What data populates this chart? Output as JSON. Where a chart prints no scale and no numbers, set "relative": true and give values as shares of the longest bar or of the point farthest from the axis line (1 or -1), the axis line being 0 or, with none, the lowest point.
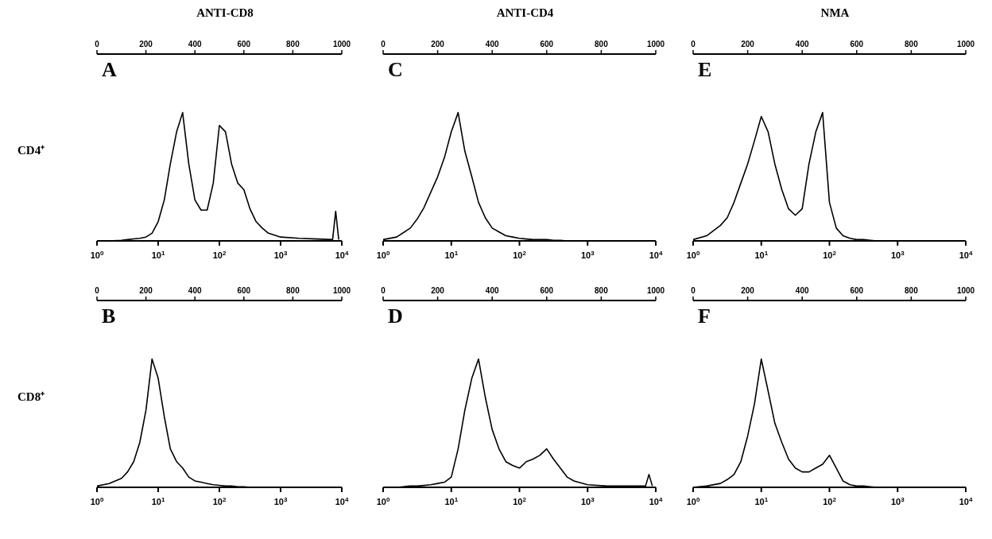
{
  "chart_data": [
    {
      "type": "line",
      "title": "ANTI-CD8",
      "ylabel": "CD4⁺",
      "annotations": [
        "A"
      ],
      "relative": true,
      "log": "x",
      "marker": "none",
      "xlim": [
        1,
        10000
      ],
      "xticks": [
        {
          "value": 1,
          "label": "10$^{0}$"
        },
        {
          "value": 10,
          "label": "10$^{1}$"
        },
        {
          "value": 100,
          "label": "10$^{2}$"
        },
        {
          "value": 1000,
          "label": "10$^{3}$"
        },
        {
          "value": 10000,
          "label": "10$^{4}$"
        }
      ],
      "x2lim": [
        0,
        1000
      ],
      "x2ticks": [
        0,
        200,
        400,
        600,
        800,
        1000
      ],
      "x": [
        1,
        1.58,
        2.51,
        3.16,
        3.98,
        5.01,
        6.31,
        7.94,
        10,
        12.6,
        15.8,
        20,
        25.1,
        31.6,
        39.8,
        50.1,
        63.1,
        79.4,
        100,
        126,
        158,
        200,
        251,
        316,
        398,
        501,
        631,
        1000,
        1995,
        3981,
        7079,
        7943,
        8913
      ],
      "series": [
        {
          "color": "#000000",
          "values": [
            0,
            0,
            0.005,
            0.01,
            0.015,
            0.02,
            0.03,
            0.06,
            0.15,
            0.32,
            0.6,
            0.85,
            1.0,
            0.6,
            0.32,
            0.24,
            0.24,
            0.45,
            0.9,
            0.85,
            0.6,
            0.45,
            0.4,
            0.25,
            0.15,
            0.1,
            0.06,
            0.03,
            0.02,
            0.015,
            0.01,
            0.23,
            0.01
          ]
        }
      ]
    },
    {
      "type": "line",
      "title": "ANTI-CD4",
      "annotations": [
        "C"
      ],
      "relative": true,
      "log": "x",
      "marker": "none",
      "xlim": [
        1,
        10000
      ],
      "xticks": [
        {
          "value": 1,
          "label": "10$^{0}$"
        },
        {
          "value": 10,
          "label": "10$^{1}$"
        },
        {
          "value": 100,
          "label": "10$^{2}$"
        },
        {
          "value": 1000,
          "label": "10$^{3}$"
        },
        {
          "value": 10000,
          "label": "10$^{4}$"
        }
      ],
      "x2lim": [
        0,
        1000
      ],
      "x2ticks": [
        0,
        200,
        400,
        600,
        800,
        1000
      ],
      "x": [
        1,
        1.58,
        2.51,
        3.16,
        3.98,
        5.01,
        6.31,
        7.94,
        10,
        12.6,
        15.8,
        20,
        25.1,
        31.6,
        39.8,
        50.1,
        63.1,
        79.4,
        100,
        126,
        158,
        200,
        251,
        316,
        398,
        501,
        631,
        1000,
        1995,
        3981,
        7079,
        7943,
        8913
      ],
      "series": [
        {
          "color": "#000000",
          "values": [
            0.01,
            0.03,
            0.1,
            0.17,
            0.26,
            0.38,
            0.5,
            0.65,
            0.85,
            1.0,
            0.7,
            0.5,
            0.3,
            0.18,
            0.1,
            0.07,
            0.04,
            0.03,
            0.02,
            0.015,
            0.01,
            0.01,
            0.01,
            0.005,
            0.005,
            0,
            0,
            0,
            0,
            0,
            0,
            0,
            0
          ]
        }
      ]
    },
    {
      "type": "line",
      "title": "NMA",
      "annotations": [
        "E"
      ],
      "relative": true,
      "log": "x",
      "marker": "none",
      "xlim": [
        1,
        10000
      ],
      "xticks": [
        {
          "value": 1,
          "label": "10$^{0}$"
        },
        {
          "value": 10,
          "label": "10$^{1}$"
        },
        {
          "value": 100,
          "label": "10$^{2}$"
        },
        {
          "value": 1000,
          "label": "10$^{3}$"
        },
        {
          "value": 10000,
          "label": "10$^{4}$"
        }
      ],
      "x2lim": [
        0,
        1000
      ],
      "x2ticks": [
        0,
        200,
        400,
        600,
        800,
        1000
      ],
      "x": [
        1,
        1.58,
        2.51,
        3.16,
        3.98,
        5.01,
        6.31,
        7.94,
        10,
        12.6,
        15.8,
        20,
        25.1,
        31.6,
        39.8,
        50.1,
        63.1,
        79.4,
        100,
        126,
        158,
        200,
        251,
        316,
        398,
        501,
        631,
        1000,
        1995,
        3981,
        7079,
        7943,
        8913
      ],
      "series": [
        {
          "color": "#000000",
          "values": [
            0.01,
            0.04,
            0.12,
            0.18,
            0.3,
            0.45,
            0.6,
            0.78,
            0.97,
            0.85,
            0.6,
            0.4,
            0.25,
            0.2,
            0.25,
            0.6,
            0.85,
            1.0,
            0.3,
            0.1,
            0.04,
            0.02,
            0.01,
            0.01,
            0.005,
            0,
            0,
            0,
            0,
            0,
            0,
            0,
            0
          ]
        }
      ]
    },
    {
      "type": "line",
      "ylabel": "CD8⁺",
      "annotations": [
        "B"
      ],
      "relative": true,
      "log": "x",
      "marker": "none",
      "xlim": [
        1,
        10000
      ],
      "xticks": [
        {
          "value": 1,
          "label": "10$^{0}$"
        },
        {
          "value": 10,
          "label": "10$^{1}$"
        },
        {
          "value": 100,
          "label": "10$^{2}$"
        },
        {
          "value": 1000,
          "label": "10$^{3}$"
        },
        {
          "value": 10000,
          "label": "10$^{4}$"
        }
      ],
      "x2lim": [
        0,
        1000
      ],
      "x2ticks": [
        0,
        200,
        400,
        600,
        800,
        1000
      ],
      "x": [
        1,
        1.58,
        2.51,
        3.16,
        3.98,
        5.01,
        6.31,
        7.94,
        10,
        12.6,
        15.8,
        20,
        25.1,
        31.6,
        39.8,
        50.1,
        63.1,
        79.4,
        100,
        126,
        158,
        200,
        251,
        316,
        398,
        501,
        631,
        1000,
        1995,
        3981,
        7079,
        7943,
        8913
      ],
      "series": [
        {
          "color": "#000000",
          "values": [
            0.01,
            0.03,
            0.07,
            0.12,
            0.2,
            0.35,
            0.6,
            1.0,
            0.85,
            0.55,
            0.3,
            0.2,
            0.15,
            0.08,
            0.05,
            0.04,
            0.03,
            0.02,
            0.015,
            0.01,
            0.01,
            0.005,
            0.005,
            0,
            0,
            0,
            0,
            0,
            0,
            0,
            0,
            0,
            0
          ]
        }
      ]
    },
    {
      "type": "line",
      "annotations": [
        "D"
      ],
      "relative": true,
      "log": "x",
      "marker": "none",
      "xlim": [
        1,
        10000
      ],
      "xticks": [
        {
          "value": 1,
          "label": "10$^{0}$"
        },
        {
          "value": 10,
          "label": "10$^{1}$"
        },
        {
          "value": 100,
          "label": "10$^{2}$"
        },
        {
          "value": 1000,
          "label": "10$^{3}$"
        },
        {
          "value": 10000,
          "label": "10$^{4}$"
        }
      ],
      "x2lim": [
        0,
        1000
      ],
      "x2ticks": [
        0,
        200,
        400,
        600,
        800,
        1000
      ],
      "x": [
        1,
        1.58,
        2.51,
        3.16,
        3.98,
        5.01,
        6.31,
        7.94,
        10,
        12.6,
        15.8,
        20,
        25.1,
        31.6,
        39.8,
        50.1,
        63.1,
        79.4,
        100,
        126,
        158,
        200,
        251,
        316,
        398,
        501,
        631,
        1000,
        1995,
        3981,
        7079,
        7943,
        8913
      ],
      "series": [
        {
          "color": "#000000",
          "values": [
            0,
            0,
            0.01,
            0.01,
            0.015,
            0.02,
            0.03,
            0.04,
            0.08,
            0.3,
            0.6,
            0.85,
            1.0,
            0.7,
            0.45,
            0.3,
            0.2,
            0.17,
            0.15,
            0.2,
            0.22,
            0.25,
            0.3,
            0.22,
            0.15,
            0.08,
            0.05,
            0.02,
            0.01,
            0.01,
            0.01,
            0.1,
            0.01
          ]
        }
      ]
    },
    {
      "type": "line",
      "annotations": [
        "F"
      ],
      "relative": true,
      "log": "x",
      "marker": "none",
      "xlim": [
        1,
        10000
      ],
      "xticks": [
        {
          "value": 1,
          "label": "10$^{0}$"
        },
        {
          "value": 10,
          "label": "10$^{1}$"
        },
        {
          "value": 100,
          "label": "10$^{2}$"
        },
        {
          "value": 1000,
          "label": "10$^{3}$"
        },
        {
          "value": 10000,
          "label": "10$^{4}$"
        }
      ],
      "x2lim": [
        0,
        1000
      ],
      "x2ticks": [
        0,
        200,
        400,
        600,
        800,
        1000
      ],
      "x": [
        1,
        1.58,
        2.51,
        3.16,
        3.98,
        5.01,
        6.31,
        7.94,
        10,
        12.6,
        15.8,
        20,
        25.1,
        31.6,
        39.8,
        50.1,
        63.1,
        79.4,
        100,
        126,
        158,
        200,
        251,
        316,
        398,
        501,
        631,
        1000,
        1995,
        3981,
        7079,
        7943,
        8913
      ],
      "series": [
        {
          "color": "#000000",
          "values": [
            0,
            0.01,
            0.03,
            0.06,
            0.1,
            0.2,
            0.4,
            0.65,
            1.0,
            0.75,
            0.5,
            0.35,
            0.22,
            0.15,
            0.12,
            0.12,
            0.15,
            0.18,
            0.25,
            0.15,
            0.05,
            0.02,
            0.01,
            0.01,
            0.005,
            0,
            0,
            0,
            0,
            0,
            0,
            0,
            0
          ]
        }
      ]
    }
  ]
}
